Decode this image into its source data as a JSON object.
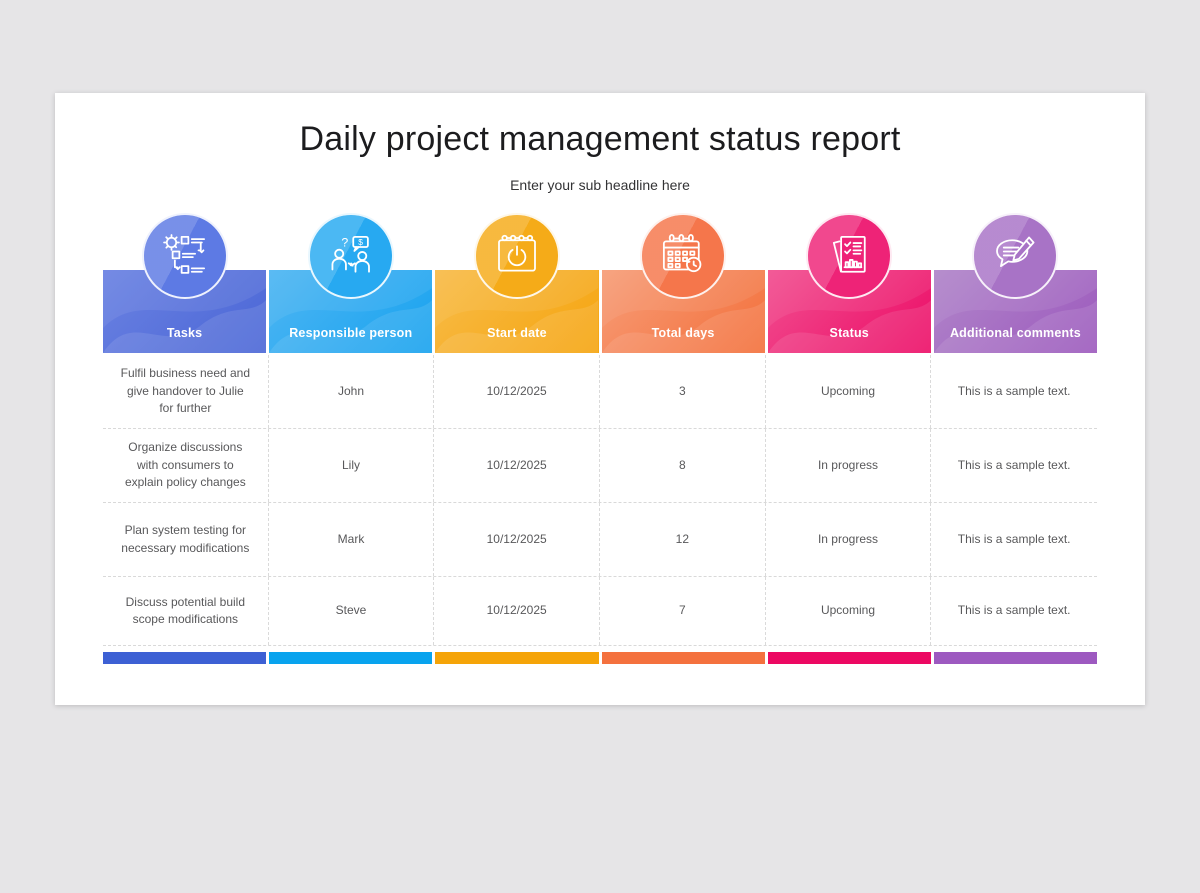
{
  "page": {
    "background_color": "#e6e5e7"
  },
  "slide": {
    "title": "Daily project management status report",
    "subtitle": "Enter your sub headline here"
  },
  "table": {
    "columns": [
      {
        "label": "Tasks",
        "icon": "tasks-icon",
        "header_from": "#6b82e2",
        "header_to": "#4a66d6",
        "circle_color": "#5d7ae4",
        "bar_color": "#3d60d4"
      },
      {
        "label": "Responsible person",
        "icon": "responsible-person-icon",
        "header_from": "#4fb6f3",
        "header_to": "#17a2ef",
        "circle_color": "#27a9f1",
        "bar_color": "#08a3ee"
      },
      {
        "label": "Start date",
        "icon": "start-date-icon",
        "header_from": "#f8bc49",
        "header_to": "#f5a40e",
        "circle_color": "#f5ab18",
        "bar_color": "#f5a408"
      },
      {
        "label": "Total days",
        "icon": "total-days-icon",
        "header_from": "#f79d78",
        "header_to": "#f36f3a",
        "circle_color": "#f5764b",
        "bar_color": "#f4713e"
      },
      {
        "label": "Status",
        "icon": "status-icon",
        "header_from": "#f14f90",
        "header_to": "#ec0c66",
        "circle_color": "#ee2377",
        "bar_color": "#ec0862"
      },
      {
        "label": "Additional comments",
        "icon": "comments-icon",
        "header_from": "#b186ca",
        "header_to": "#9c59bd",
        "circle_color": "#a873c6",
        "bar_color": "#9d59c0"
      }
    ],
    "rows": [
      {
        "task": "Fulfil business need and give handover to Julie for further",
        "person": "John",
        "start_date": "10/12/2025",
        "total_days": "3",
        "status": "Upcoming",
        "comment": "This is a sample text."
      },
      {
        "task": "Organize discussions with consumers to explain policy changes",
        "person": "Lily",
        "start_date": "10/12/2025",
        "total_days": "8",
        "status": "In progress",
        "comment": "This is a sample text."
      },
      {
        "task": "Plan system testing for necessary modifications",
        "person": "Mark",
        "start_date": "10/12/2025",
        "total_days": "12",
        "status": "In progress",
        "comment": "This is a sample text."
      },
      {
        "task": "Discuss potential build scope modifications",
        "person": "Steve",
        "start_date": "10/12/2025",
        "total_days": "7",
        "status": "Upcoming",
        "comment": "This is a sample text."
      }
    ]
  }
}
